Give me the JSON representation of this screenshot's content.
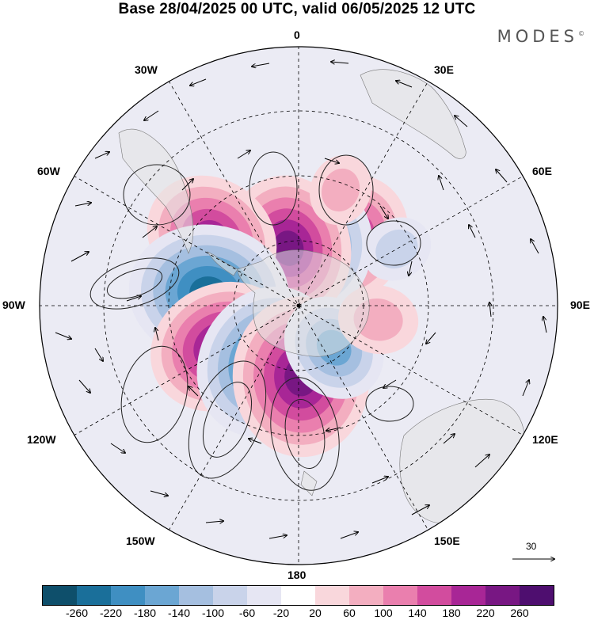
{
  "title": "Base 28/04/2025 00 UTC, valid 06/05/2025 12 UTC",
  "brand": "MODES",
  "brand_mark": "©",
  "longitude_labels": {
    "top": "0",
    "bottom": "180",
    "left": "90W",
    "right": "90E",
    "upper_left_30": "30W",
    "upper_left_60": "60W",
    "upper_right_30": "30E",
    "upper_right_60": "60E",
    "lower_left_120": "120W",
    "lower_left_150": "150W",
    "lower_right_120": "120E",
    "lower_right_150": "150E"
  },
  "wind_reference": {
    "label": "30",
    "icon": "arrow-right-icon"
  },
  "colorbar": {
    "colors": [
      "#0e4f6b",
      "#1a6f9a",
      "#3f8fc2",
      "#6ba6d3",
      "#a5bfe0",
      "#c9d3ea",
      "#e6e6f3",
      "#ffffff",
      "#f9d7dc",
      "#f3aec0",
      "#ea7fae",
      "#d24c9e",
      "#a82696",
      "#781783",
      "#4e0e6f"
    ],
    "ticks": [
      "-260",
      "-220",
      "-180",
      "-140",
      "-100",
      "-60",
      "-20",
      "20",
      "60",
      "100",
      "140",
      "180",
      "220",
      "260"
    ]
  },
  "anomaly_centers": [
    {
      "lon": 36,
      "colat": 25,
      "value": 200
    },
    {
      "lon": 15,
      "colat": 18,
      "value": -200
    },
    {
      "lon": -10,
      "colat": 18,
      "value": 220
    },
    {
      "lon": -52,
      "colat": 34,
      "value": 200
    },
    {
      "lon": -82,
      "colat": 28,
      "value": -250
    },
    {
      "lon": -118,
      "colat": 27,
      "value": 220
    },
    {
      "lon": -150,
      "colat": 20,
      "value": -240
    },
    {
      "lon": 178,
      "colat": 22,
      "value": 250
    },
    {
      "lon": 140,
      "colat": 17,
      "value": -140
    },
    {
      "lon": 100,
      "colat": 25,
      "value": 80
    },
    {
      "lon": 60,
      "colat": 35,
      "value": -60
    },
    {
      "lon": 20,
      "colat": 38,
      "value": 60
    }
  ]
}
